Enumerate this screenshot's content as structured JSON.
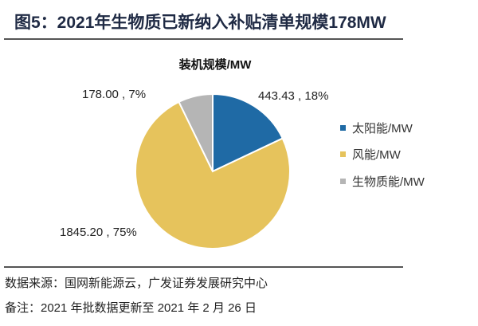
{
  "title": "图5：2021年生物质已新纳入补贴清单规模178MW",
  "chart_data": {
    "type": "pie",
    "title": "装机规模/MW",
    "start": "12 o'clock, clockwise",
    "slices": [
      {
        "name": "太阳能/MW",
        "value": 443.43,
        "percent": 18,
        "label": "443.43 , 18%",
        "color": "#1f6aa5"
      },
      {
        "name": "风能/MW",
        "value": 1845.2,
        "percent": 75,
        "label": "1845.20 , 75%",
        "color": "#e6c35c"
      },
      {
        "name": "生物质能/MW",
        "value": 178.0,
        "percent": 7,
        "label": "178.00 , 7%",
        "color": "#b5b5b5"
      }
    ],
    "legend_position": "right"
  },
  "source": "数据来源：国网新能源云，广发证券发展研究中心",
  "note": "备注：2021 年批数据更新至 2021 年 2 月 26 日"
}
